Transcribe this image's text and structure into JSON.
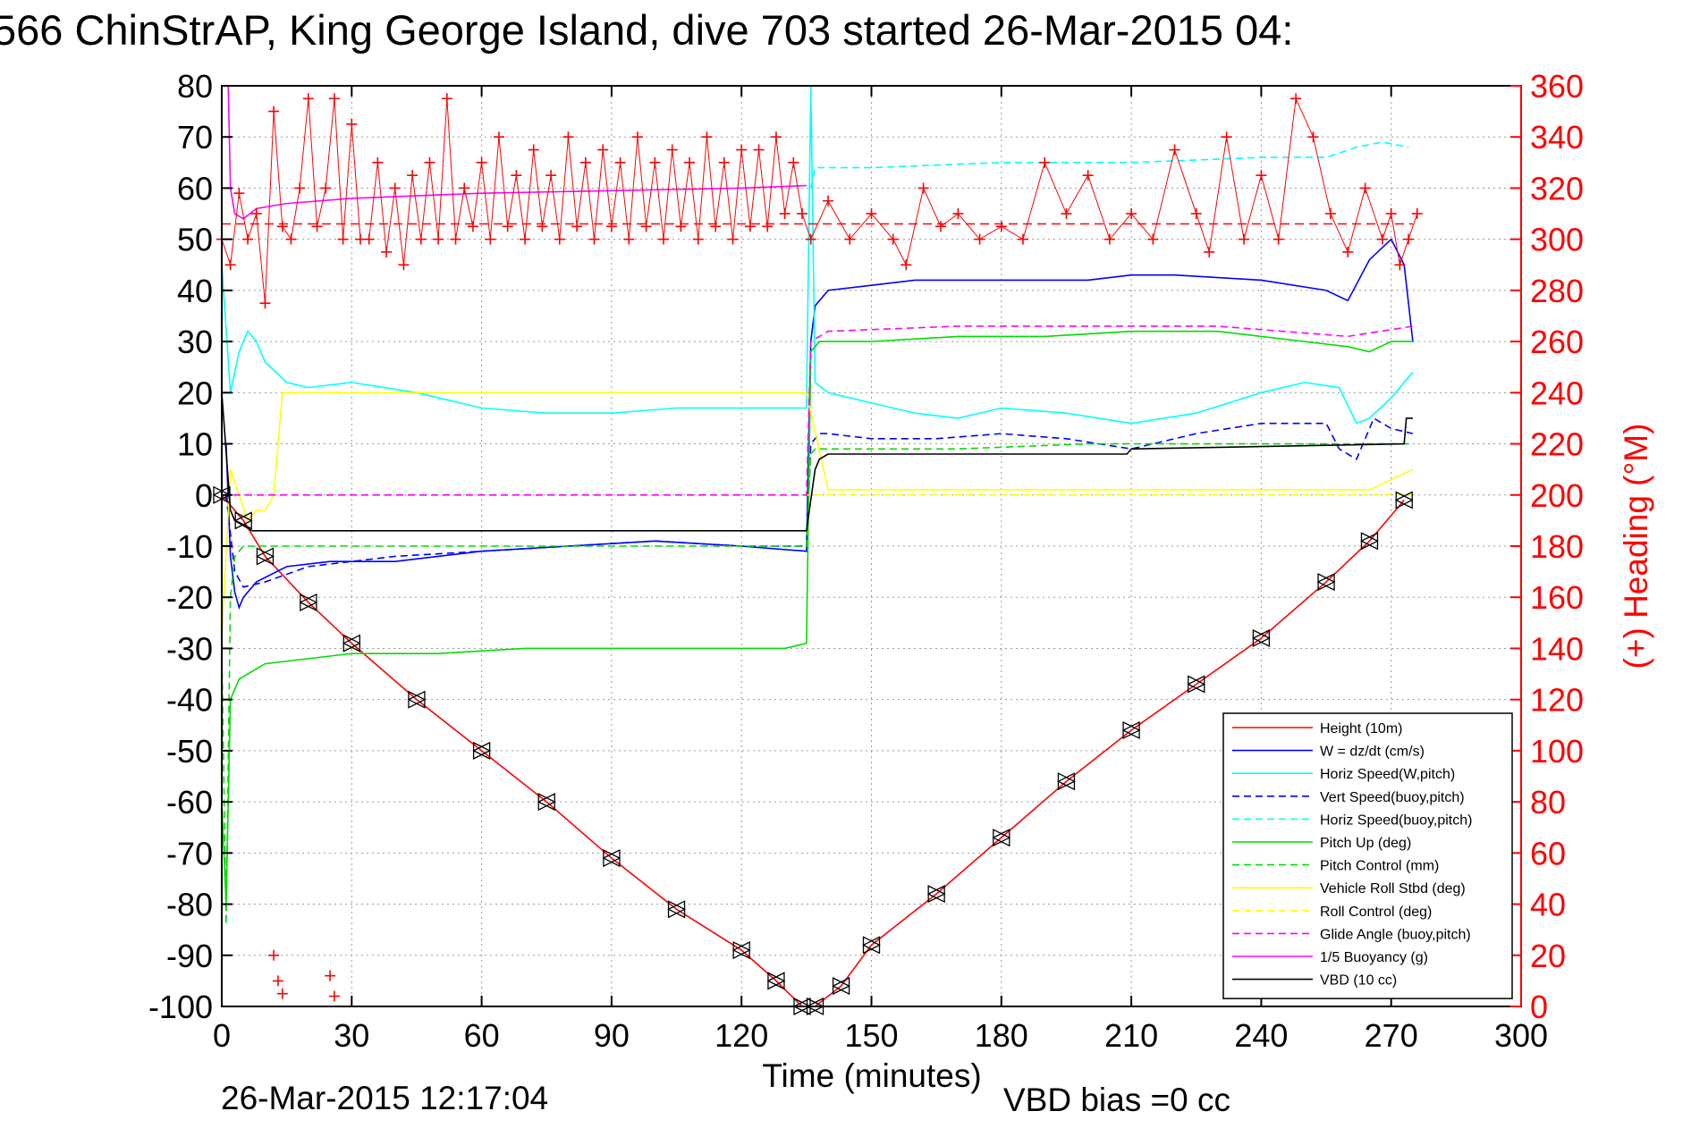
{
  "title": "566 ChinStrAP, King George Island, dive 703 started 26-Mar-2015 04:",
  "footer": {
    "timestamp": "26-Mar-2015 12:17:04",
    "vbd_bias": "VBD bias =0 cc"
  },
  "colors": {
    "red": "#ff0000",
    "blue": "#0000ff",
    "cyan": "#00ffff",
    "green": "#00dd00",
    "yellow": "#ffff00",
    "magenta": "#ff00ff",
    "black": "#000000"
  },
  "chart_data": {
    "type": "line",
    "xlabel": "Time (minutes)",
    "ylabel": "",
    "y2label": "(+) Heading (°M)",
    "xlim": [
      0,
      300
    ],
    "ylim": [
      -100,
      80
    ],
    "y2lim": [
      0,
      360
    ],
    "xticks": [
      "0",
      "30",
      "60",
      "90",
      "120",
      "150",
      "180",
      "210",
      "240",
      "270",
      "300"
    ],
    "yticks": [
      "80",
      "70",
      "60",
      "50",
      "40",
      "30",
      "20",
      "10",
      "0",
      "-10",
      "-20",
      "-30",
      "-40",
      "-50",
      "-60",
      "-70",
      "-80",
      "-90",
      "-100"
    ],
    "y2ticks": [
      "360",
      "340",
      "320",
      "300",
      "280",
      "260",
      "240",
      "220",
      "200",
      "180",
      "160",
      "140",
      "120",
      "100",
      "80",
      "60",
      "40",
      "20",
      "0"
    ],
    "grid": true,
    "legend_position": "bottom-right",
    "series": [
      {
        "name": "Height (10m)",
        "color": "red",
        "dash": "solid",
        "x": [
          0,
          5,
          10,
          20,
          30,
          45,
          60,
          75,
          90,
          105,
          120,
          128,
          134,
          137,
          143,
          150,
          165,
          180,
          195,
          210,
          225,
          240,
          255,
          265,
          273
        ],
        "y": [
          0,
          -5,
          -12,
          -21,
          -29,
          -40,
          -50,
          -60,
          -71,
          -81,
          -89,
          -95,
          -100,
          -100,
          -96,
          -88,
          -78,
          -67,
          -56,
          -46,
          -37,
          -28,
          -17,
          -9,
          -1
        ]
      },
      {
        "name": "W = dz/dt (cm/s)",
        "color": "blue",
        "dash": "solid",
        "x": [
          1,
          2,
          3,
          4,
          5,
          8,
          15,
          25,
          40,
          60,
          80,
          100,
          120,
          135,
          136,
          137,
          140,
          150,
          160,
          180,
          200,
          210,
          220,
          240,
          255,
          260,
          265,
          270,
          273,
          275
        ],
        "y": [
          10,
          -12,
          -19,
          -22,
          -20,
          -17,
          -14,
          -13,
          -13,
          -11,
          -10,
          -9,
          -10,
          -11,
          30,
          37,
          40,
          41,
          42,
          42,
          42,
          43,
          43,
          42,
          40,
          38,
          46,
          50,
          45,
          30
        ]
      },
      {
        "name": "Horiz Speed(W,pitch)",
        "color": "cyan",
        "dash": "solid",
        "x": [
          0,
          2,
          4,
          6,
          8,
          10,
          15,
          20,
          30,
          45,
          60,
          75,
          90,
          105,
          120,
          135,
          136,
          137,
          140,
          150,
          160,
          170,
          180,
          195,
          210,
          225,
          240,
          250,
          258,
          262,
          265,
          270,
          275
        ],
        "y": [
          45,
          20,
          28,
          32,
          30,
          26,
          22,
          21,
          22,
          20,
          17,
          16,
          16,
          17,
          17,
          17,
          80,
          22,
          20,
          18,
          16,
          15,
          17,
          16,
          14,
          16,
          20,
          22,
          21,
          14,
          15,
          19,
          24
        ]
      },
      {
        "name": "Vert Speed(buoy,pitch)",
        "color": "blue",
        "dash": "dashed",
        "x": [
          1,
          3,
          5,
          10,
          20,
          40,
          60,
          80,
          100,
          120,
          135,
          136,
          138,
          140,
          150,
          165,
          180,
          195,
          210,
          225,
          240,
          250,
          255,
          258,
          262,
          266,
          270,
          275
        ],
        "y": [
          0,
          -15,
          -18,
          -17,
          -14,
          -12,
          -11,
          -10,
          -9,
          -10,
          -10,
          10,
          12,
          12,
          11,
          11,
          12,
          11,
          9,
          12,
          14,
          14,
          14,
          9,
          7,
          15,
          13,
          12
        ]
      },
      {
        "name": "Horiz Speed(buoy,pitch)",
        "color": "cyan",
        "dash": "dashed",
        "x": [
          136,
          137,
          150,
          180,
          210,
          240,
          255,
          262,
          268,
          274
        ],
        "y": [
          60,
          64,
          64,
          65,
          65,
          66,
          66,
          68,
          69,
          68
        ]
      },
      {
        "name": "Pitch Up (deg)",
        "color": "green",
        "dash": "solid",
        "x": [
          0,
          1,
          2,
          3,
          4,
          6,
          10,
          20,
          30,
          50,
          70,
          90,
          110,
          130,
          135,
          136,
          138,
          140,
          150,
          170,
          190,
          210,
          230,
          250,
          260,
          265,
          270,
          275
        ],
        "y": [
          -60,
          -80,
          -40,
          -38,
          -36,
          -35,
          -33,
          -32,
          -31,
          -31,
          -30,
          -30,
          -30,
          -30,
          -29,
          28,
          30,
          30,
          30,
          31,
          31,
          32,
          32,
          30,
          29,
          28,
          30,
          30
        ]
      },
      {
        "name": "Pitch Control (mm)",
        "color": "green",
        "dash": "dashed",
        "x": [
          0,
          1,
          2,
          3,
          5,
          10,
          30,
          60,
          90,
          120,
          135,
          136,
          137,
          140,
          170,
          200,
          230,
          260,
          275
        ],
        "y": [
          -30,
          -84,
          -20,
          -12,
          -10,
          -10,
          -10,
          -10,
          -10,
          -10,
          -10,
          8,
          9,
          9,
          9,
          10,
          10,
          10,
          10
        ]
      },
      {
        "name": "Vehicle Roll Stbd (deg)",
        "color": "yellow",
        "dash": "solid",
        "x": [
          0,
          2,
          4,
          6,
          8,
          10,
          12,
          14,
          30,
          60,
          90,
          120,
          135,
          140,
          170,
          200,
          230,
          255,
          265,
          270,
          275
        ],
        "y": [
          -28,
          5,
          0,
          -5,
          -3,
          -3,
          0,
          20,
          20,
          20,
          20,
          20,
          20,
          1,
          1,
          1,
          1,
          1,
          1,
          3,
          5
        ]
      },
      {
        "name": "Roll Control (deg)",
        "color": "yellow",
        "dash": "dashed",
        "x": [
          0,
          10,
          30,
          60,
          90,
          120,
          135,
          140,
          170,
          200,
          230,
          260,
          275
        ],
        "y": [
          0,
          0,
          0,
          0,
          0,
          0,
          0,
          0,
          0,
          0,
          0,
          0,
          0
        ]
      },
      {
        "name": "Glide Angle (buoy,pitch)",
        "color": "magenta",
        "dash": "dashed",
        "x": [
          0,
          2,
          5,
          10,
          60,
          120,
          135,
          136,
          140,
          170,
          200,
          230,
          260,
          275
        ],
        "y": [
          0,
          0,
          0,
          0,
          0,
          0,
          0,
          30,
          32,
          33,
          33,
          33,
          31,
          33
        ]
      },
      {
        "name": "1/5 Buoyancy (g)",
        "color": "magenta",
        "dash": "solid",
        "x": [
          1.5,
          2,
          3,
          5,
          8,
          15,
          30,
          60,
          90,
          120,
          135
        ],
        "y": [
          80,
          60,
          55,
          54,
          56,
          57,
          58,
          59,
          59.5,
          60,
          60.5
        ]
      },
      {
        "name": "VBD (10 cc)",
        "color": "black",
        "dash": "solid",
        "x": [
          0,
          2,
          3,
          5,
          7,
          10,
          134,
          135,
          137,
          138,
          140,
          209,
          210,
          273,
          273.5,
          275
        ],
        "y": [
          20,
          -3,
          -5,
          -6,
          -7,
          -7,
          -7,
          -7,
          5,
          7,
          8,
          8,
          9,
          10,
          15,
          15
        ]
      }
    ],
    "heading": {
      "name": "(+) Heading",
      "color": "red",
      "mean": 306,
      "x": [
        0,
        2,
        4,
        6,
        8,
        10,
        12,
        14,
        16,
        18,
        20,
        22,
        24,
        26,
        28,
        30,
        32,
        34,
        36,
        38,
        40,
        42,
        44,
        46,
        48,
        50,
        52,
        54,
        56,
        58,
        60,
        62,
        64,
        66,
        68,
        70,
        72,
        74,
        76,
        78,
        80,
        82,
        84,
        86,
        88,
        90,
        92,
        94,
        96,
        98,
        100,
        102,
        104,
        106,
        108,
        110,
        112,
        114,
        116,
        118,
        120,
        122,
        124,
        126,
        128,
        130,
        132,
        134,
        136,
        140,
        145,
        150,
        155,
        158,
        162,
        166,
        170,
        175,
        180,
        185,
        190,
        195,
        200,
        205,
        210,
        215,
        220,
        225,
        228,
        232,
        236,
        240,
        244,
        248,
        252,
        256,
        260,
        264,
        268,
        270,
        272,
        274,
        276
      ],
      "y2": [
        300,
        290,
        318,
        300,
        310,
        275,
        350,
        305,
        300,
        320,
        355,
        305,
        320,
        355,
        300,
        345,
        300,
        300,
        330,
        295,
        320,
        290,
        325,
        300,
        330,
        300,
        355,
        300,
        320,
        305,
        330,
        300,
        340,
        305,
        325,
        300,
        335,
        305,
        325,
        300,
        340,
        305,
        330,
        300,
        335,
        305,
        330,
        300,
        340,
        305,
        330,
        300,
        335,
        305,
        330,
        300,
        340,
        305,
        330,
        300,
        335,
        305,
        335,
        305,
        340,
        310,
        330,
        310,
        300,
        315,
        300,
        310,
        300,
        290,
        320,
        305,
        310,
        300,
        305,
        300,
        330,
        310,
        325,
        300,
        310,
        300,
        335,
        310,
        295,
        340,
        300,
        325,
        300,
        355,
        340,
        310,
        295,
        320,
        300,
        310,
        290,
        300,
        310
      ]
    },
    "heading_low": {
      "x": [
        12,
        13,
        14,
        25,
        26
      ],
      "y2": [
        20,
        10,
        5,
        12,
        4
      ]
    }
  }
}
